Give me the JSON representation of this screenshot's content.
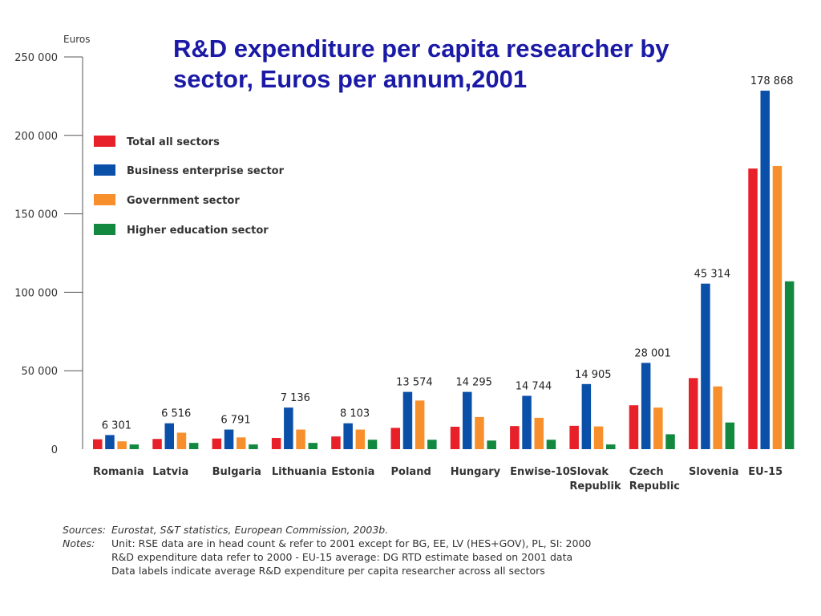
{
  "chart_data": {
    "type": "bar",
    "title": "R&D expenditure per capita researcher by sector, Euros per annum,2001",
    "ylabel": "Euros",
    "ylim": [
      0,
      250000
    ],
    "yticks": [
      0,
      50000,
      100000,
      150000,
      200000,
      250000
    ],
    "ytick_labels": [
      "0",
      "50 000",
      "100 000",
      "150 000",
      "200 000",
      "250 000"
    ],
    "categories": [
      "Romania",
      "Latvia",
      "Bulgaria",
      "Lithuania",
      "Estonia",
      "Poland",
      "Hungary",
      "Enwise-10",
      "Slovak Republik",
      "Czech Republic",
      "Slovenia",
      "EU-15"
    ],
    "category_lines": [
      [
        "Romania"
      ],
      [
        "Latvia"
      ],
      [
        "Bulgaria"
      ],
      [
        "Lithuania"
      ],
      [
        "Estonia"
      ],
      [
        "Poland"
      ],
      [
        "Hungary"
      ],
      [
        "Enwise-10"
      ],
      [
        "Slovak",
        "Republik"
      ],
      [
        "Czech",
        "Republic"
      ],
      [
        "Slovenia"
      ],
      [
        "EU-15"
      ]
    ],
    "data_labels": [
      "6 301",
      "6 516",
      "6 791",
      "7 136",
      "8 103",
      "13 574",
      "14 295",
      "14 744",
      "14 905",
      "28 001",
      "45 314",
      "178 868"
    ],
    "series": [
      {
        "name": "Total all sectors",
        "color": "#e8202a",
        "values": [
          6301,
          6516,
          6791,
          7136,
          8103,
          13574,
          14295,
          14744,
          14905,
          28001,
          45314,
          178868
        ]
      },
      {
        "name": "Business enterprise sector",
        "color": "#0a4fa8",
        "values": [
          9000,
          16500,
          12500,
          26500,
          16500,
          36500,
          36500,
          34000,
          41500,
          55000,
          105500,
          228500
        ]
      },
      {
        "name": "Government sector",
        "color": "#f7902c",
        "values": [
          5000,
          10500,
          7500,
          12500,
          12500,
          31000,
          20500,
          20000,
          14500,
          26500,
          40000,
          180500
        ]
      },
      {
        "name": "Higher education sector",
        "color": "#12893e",
        "values": [
          3000,
          4000,
          3000,
          4000,
          6000,
          6000,
          5500,
          6000,
          3000,
          9500,
          17000,
          107000
        ]
      }
    ],
    "grid": false,
    "legend_position": "top-left"
  },
  "notes": {
    "sources_key": "Sources:",
    "sources_text": "Eurostat, S&T statistics, European Commission, 2003b.",
    "notes_key": "Notes:",
    "notes_lines": [
      "Unit: RSE data are in head count & refer to 2001 except for BG, EE, LV (HES+GOV), PL, SI: 2000",
      "R&D expenditure data refer to 2000 - EU-15 average: DG RTD estimate based on 2001 data",
      "Data labels indicate average R&D expenditure per capita researcher across all sectors"
    ]
  }
}
